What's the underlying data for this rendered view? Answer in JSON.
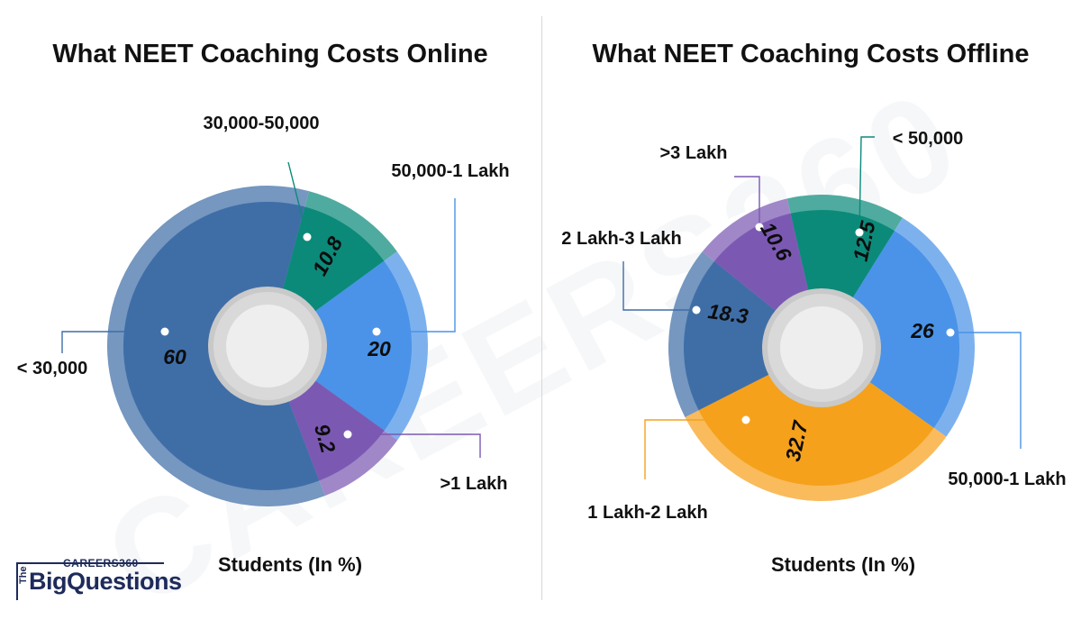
{
  "watermark": "CAREERS360",
  "charts": [
    {
      "title": "What NEET Coaching Costs Online",
      "footer": "Students (In %)"
    },
    {
      "title": "What NEET Coaching Costs Offline",
      "footer": "Students (In %)"
    }
  ],
  "logo": {
    "top_text": "CAREERS360",
    "the_text": "The",
    "main_text": "BigQuestions"
  },
  "chart_data": [
    {
      "type": "pie",
      "title": "What NEET Coaching Costs Online",
      "footer": "Students (In %)",
      "slices": [
        {
          "label": "30,000-50,000",
          "value": 10.8,
          "color": "#0b8a7a"
        },
        {
          "label": "50,000-1 Lakh",
          "value": 20,
          "color": "#4a93e8"
        },
        {
          "label": ">1 Lakh",
          "value": 9.2,
          "color": "#7b59b3"
        },
        {
          "label": "< 30,000",
          "value": 60,
          "color": "#3f6ea7"
        }
      ]
    },
    {
      "type": "pie",
      "title": "What NEET Coaching Costs Offline",
      "footer": "Students (In %)",
      "slices": [
        {
          "label": "< 50,000",
          "value": 12.5,
          "color": "#0b8a7a"
        },
        {
          "label": "50,000-1 Lakh",
          "value": 26,
          "color": "#4a93e8"
        },
        {
          "label": "1 Lakh-2 Lakh",
          "value": 32.7,
          "color": "#f6a11c"
        },
        {
          "label": "2 Lakh-3 Lakh",
          "value": 18.3,
          "color": "#3f6ea7"
        },
        {
          "label": ">3 Lakh",
          "value": 10.6,
          "color": "#7b59b3"
        }
      ]
    }
  ]
}
